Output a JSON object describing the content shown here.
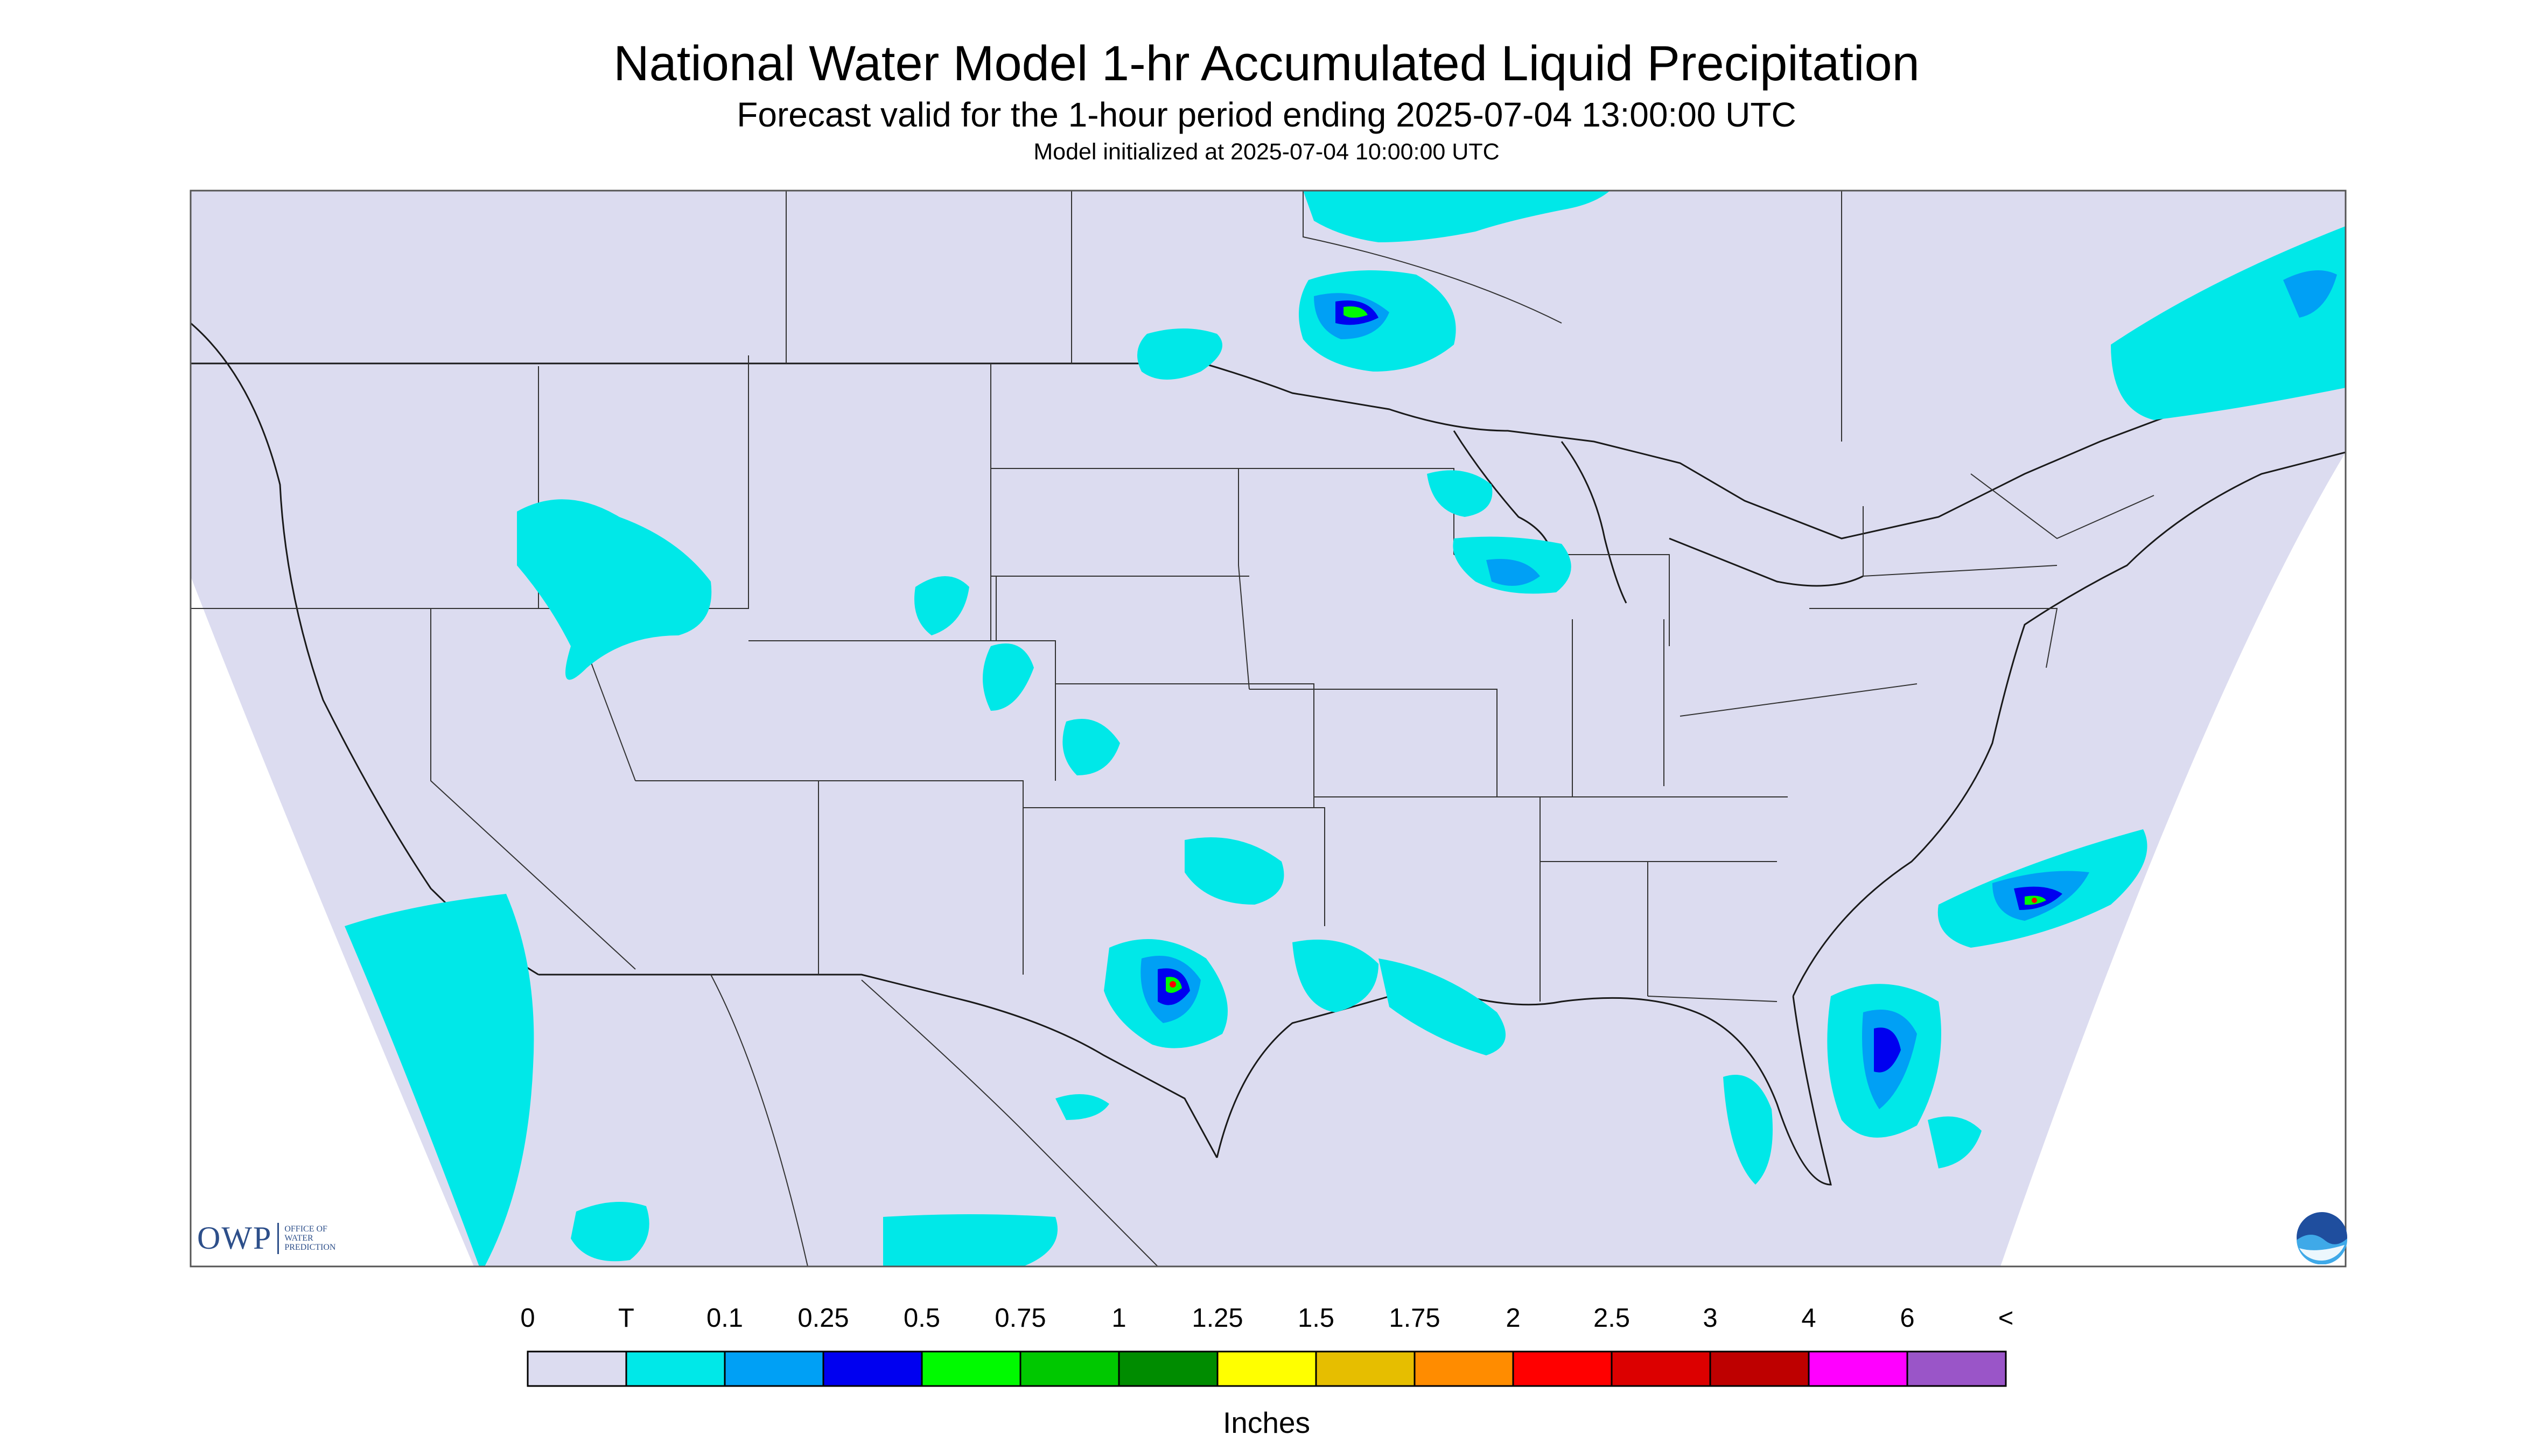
{
  "header": {
    "title": "National Water Model 1-hr Accumulated Liquid Precipitation",
    "subtitle": "Forecast valid for the 1-hour period ending 2025-07-04 13:00:00 UTC",
    "init": "Model initialized at 2025-07-04 10:00:00 UTC"
  },
  "logo": {
    "owp_abbrev": "OWP",
    "owp_full": "OFFICE OF WATER PREDICTION",
    "noaa": "NOAA"
  },
  "legend": {
    "labels": [
      "0",
      "T",
      "0.1",
      "0.25",
      "0.5",
      "0.75",
      "1",
      "1.25",
      "1.5",
      "1.75",
      "2",
      "2.5",
      "3",
      "4",
      "6",
      "<"
    ],
    "colors": [
      "#dcdcf0",
      "#00e8e8",
      "#00a0f5",
      "#0000f0",
      "#00fa00",
      "#00c800",
      "#008c00",
      "#ffff00",
      "#e6be00",
      "#ff8c00",
      "#ff0000",
      "#dc0000",
      "#be0000",
      "#ff00ff",
      "#9a55c8"
    ],
    "units": "Inches"
  },
  "map": {
    "background_color": "#dcdcf0",
    "projection_outside_color": "#ffffff",
    "boundary_color": "#1a1a1a"
  }
}
